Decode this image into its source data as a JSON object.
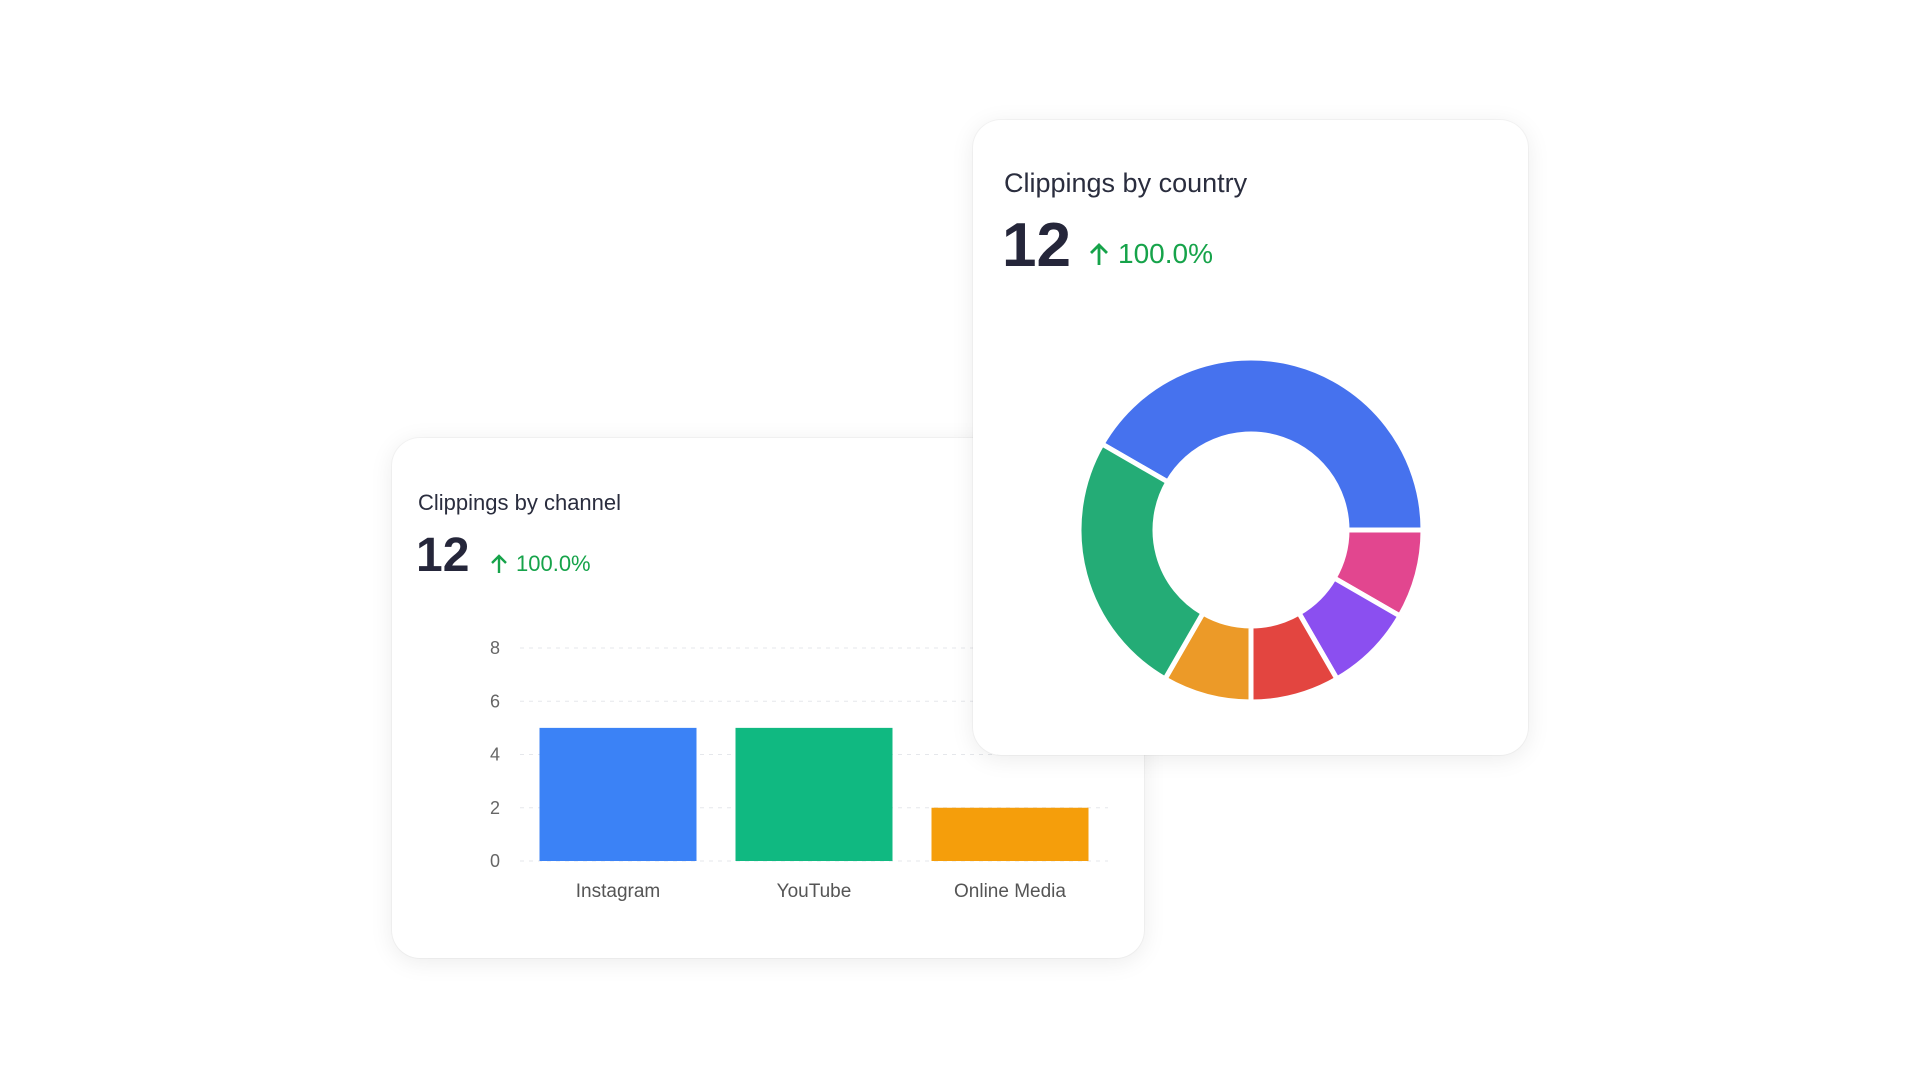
{
  "chart_data": [
    {
      "type": "bar",
      "title": "Clippings by channel",
      "total": "12",
      "change": "100.0%",
      "change_direction": "up",
      "categories": [
        "Instagram",
        "YouTube",
        "Online Media"
      ],
      "values": [
        5,
        5,
        2
      ],
      "colors": [
        "#3b82f6",
        "#10b981",
        "#f59e0b"
      ],
      "yticks": [
        "0",
        "2",
        "4",
        "6",
        "8"
      ],
      "ylim": [
        0,
        8
      ],
      "grid": true
    },
    {
      "type": "pie",
      "subtype": "donut",
      "title": "Clippings by country",
      "total": "12",
      "change": "100.0%",
      "change_direction": "up",
      "values": [
        5,
        1,
        1,
        1,
        1,
        3
      ],
      "colors": [
        "#4672ee",
        "#e2468f",
        "#8b4ff0",
        "#e34540",
        "#ec9a28",
        "#24ac76"
      ]
    }
  ],
  "accent_positive": "#16a34a"
}
